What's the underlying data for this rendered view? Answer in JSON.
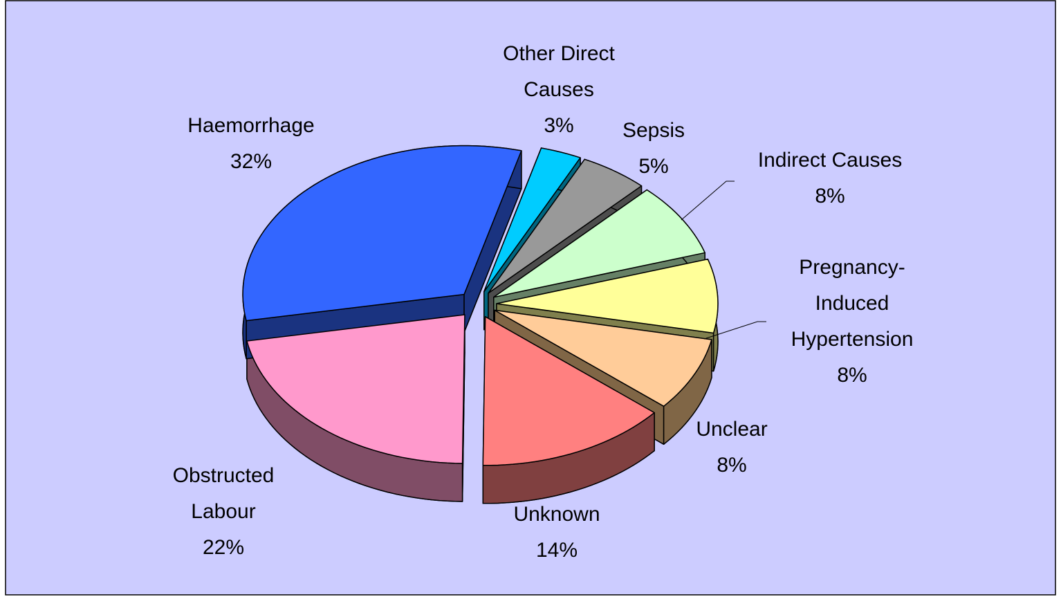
{
  "chart_data": {
    "type": "pie",
    "categories": [
      "Other Direct Causes",
      "Sepsis",
      "Indirect Causes",
      "Pregnancy-Induced Hypertension",
      "Unclear",
      "Unknown",
      "Obstructed Labour",
      "Haemorrhage"
    ],
    "values": [
      3,
      5,
      8,
      8,
      8,
      14,
      22,
      32
    ],
    "value_labels": [
      "3%",
      "5%",
      "8%",
      "8%",
      "8%",
      "14%",
      "22%",
      "32%"
    ],
    "colors": [
      "#00ccff",
      "#999999",
      "#ccffcc",
      "#ffff99",
      "#ffcc99",
      "#ff8080",
      "#ff99cc",
      "#3366ff"
    ],
    "side_colors": [
      "#006680",
      "#4d4d4d",
      "#668066",
      "#80804d",
      "#806646",
      "#804040",
      "#804d66",
      "#1a3380"
    ],
    "exploded": true,
    "three_d": true
  }
}
